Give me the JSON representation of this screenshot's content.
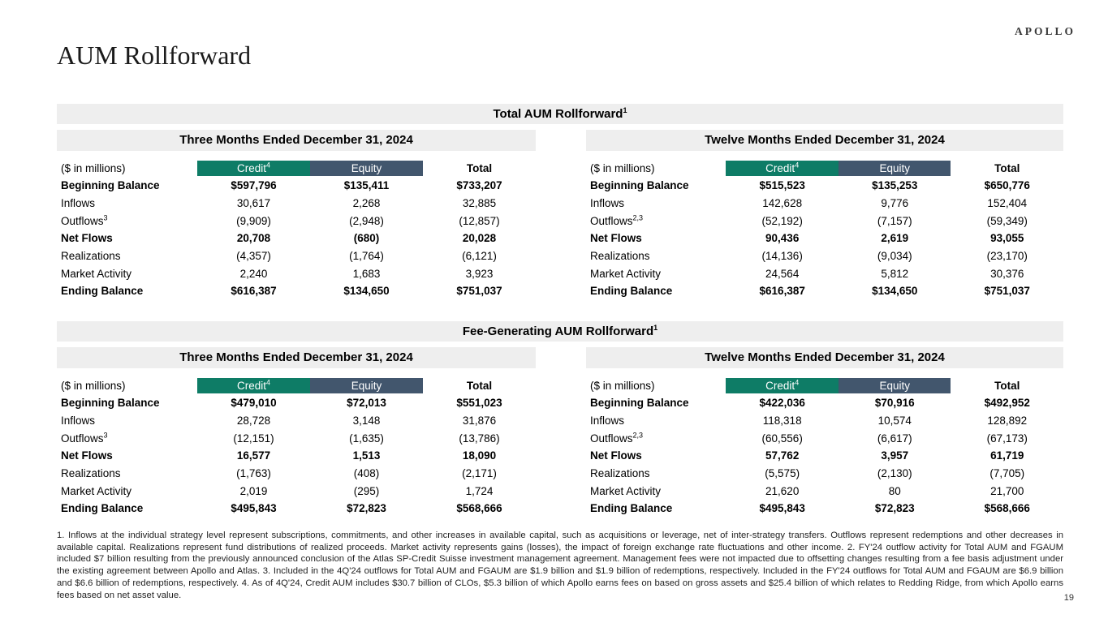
{
  "brand": {
    "logo": "APOLLO"
  },
  "page": {
    "title": "AUM Rollforward",
    "number": "19"
  },
  "colors": {
    "credit_header": "#0e7c66",
    "equity_header": "#42566d",
    "bar_bg": "#eeeeee"
  },
  "sections": [
    {
      "title": "Total AUM Rollforward",
      "title_sup": "1",
      "tables": [
        {
          "period": "Three Months Ended December 31, 2024",
          "unit_label": "($ in millions)",
          "columns": [
            {
              "label": "Credit",
              "sup": "4"
            },
            {
              "label": "Equity",
              "sup": ""
            },
            {
              "label": "Total",
              "sup": ""
            }
          ],
          "rows": [
            {
              "label": "Beginning Balance",
              "sup": "",
              "bold": true,
              "values": [
                "$597,796",
                "$135,411",
                "$733,207"
              ]
            },
            {
              "label": "Inflows",
              "sup": "",
              "bold": false,
              "values": [
                "30,617",
                "2,268",
                "32,885"
              ]
            },
            {
              "label": "Outflows",
              "sup": "3",
              "bold": false,
              "values": [
                "(9,909)",
                "(2,948)",
                "(12,857)"
              ]
            },
            {
              "label": "Net Flows",
              "sup": "",
              "bold": true,
              "values": [
                "20,708",
                "(680)",
                "20,028"
              ]
            },
            {
              "label": "Realizations",
              "sup": "",
              "bold": false,
              "values": [
                "(4,357)",
                "(1,764)",
                "(6,121)"
              ]
            },
            {
              "label": "Market Activity",
              "sup": "",
              "bold": false,
              "values": [
                "2,240",
                "1,683",
                "3,923"
              ]
            },
            {
              "label": "Ending Balance",
              "sup": "",
              "bold": true,
              "values": [
                "$616,387",
                "$134,650",
                "$751,037"
              ]
            }
          ]
        },
        {
          "period": "Twelve Months Ended December 31, 2024",
          "unit_label": "($ in millions)",
          "columns": [
            {
              "label": "Credit",
              "sup": "4"
            },
            {
              "label": "Equity",
              "sup": ""
            },
            {
              "label": "Total",
              "sup": ""
            }
          ],
          "rows": [
            {
              "label": "Beginning Balance",
              "sup": "",
              "bold": true,
              "values": [
                "$515,523",
                "$135,253",
                "$650,776"
              ]
            },
            {
              "label": "Inflows",
              "sup": "",
              "bold": false,
              "values": [
                "142,628",
                "9,776",
                "152,404"
              ]
            },
            {
              "label": "Outflows",
              "sup": "2,3",
              "bold": false,
              "values": [
                "(52,192)",
                "(7,157)",
                "(59,349)"
              ]
            },
            {
              "label": "Net Flows",
              "sup": "",
              "bold": true,
              "values": [
                "90,436",
                "2,619",
                "93,055"
              ]
            },
            {
              "label": "Realizations",
              "sup": "",
              "bold": false,
              "values": [
                "(14,136)",
                "(9,034)",
                "(23,170)"
              ]
            },
            {
              "label": "Market Activity",
              "sup": "",
              "bold": false,
              "values": [
                "24,564",
                "5,812",
                "30,376"
              ]
            },
            {
              "label": "Ending Balance",
              "sup": "",
              "bold": true,
              "values": [
                "$616,387",
                "$134,650",
                "$751,037"
              ]
            }
          ]
        }
      ]
    },
    {
      "title": "Fee-Generating AUM Rollforward",
      "title_sup": "1",
      "tables": [
        {
          "period": "Three Months Ended December 31, 2024",
          "unit_label": "($ in millions)",
          "columns": [
            {
              "label": "Credit",
              "sup": "4"
            },
            {
              "label": "Equity",
              "sup": ""
            },
            {
              "label": "Total",
              "sup": ""
            }
          ],
          "rows": [
            {
              "label": "Beginning Balance",
              "sup": "",
              "bold": true,
              "values": [
                "$479,010",
                "$72,013",
                "$551,023"
              ]
            },
            {
              "label": "Inflows",
              "sup": "",
              "bold": false,
              "values": [
                "28,728",
                "3,148",
                "31,876"
              ]
            },
            {
              "label": "Outflows",
              "sup": "3",
              "bold": false,
              "values": [
                "(12,151)",
                "(1,635)",
                "(13,786)"
              ]
            },
            {
              "label": "Net Flows",
              "sup": "",
              "bold": true,
              "values": [
                "16,577",
                "1,513",
                "18,090"
              ]
            },
            {
              "label": "Realizations",
              "sup": "",
              "bold": false,
              "values": [
                "(1,763)",
                "(408)",
                "(2,171)"
              ]
            },
            {
              "label": "Market Activity",
              "sup": "",
              "bold": false,
              "values": [
                "2,019",
                "(295)",
                "1,724"
              ]
            },
            {
              "label": "Ending Balance",
              "sup": "",
              "bold": true,
              "values": [
                "$495,843",
                "$72,823",
                "$568,666"
              ]
            }
          ]
        },
        {
          "period": "Twelve Months Ended December 31, 2024",
          "unit_label": "($ in millions)",
          "columns": [
            {
              "label": "Credit",
              "sup": "4"
            },
            {
              "label": "Equity",
              "sup": ""
            },
            {
              "label": "Total",
              "sup": ""
            }
          ],
          "rows": [
            {
              "label": "Beginning Balance",
              "sup": "",
              "bold": true,
              "values": [
                "$422,036",
                "$70,916",
                "$492,952"
              ]
            },
            {
              "label": "Inflows",
              "sup": "",
              "bold": false,
              "values": [
                "118,318",
                "10,574",
                "128,892"
              ]
            },
            {
              "label": "Outflows",
              "sup": "2,3",
              "bold": false,
              "values": [
                "(60,556)",
                "(6,617)",
                "(67,173)"
              ]
            },
            {
              "label": "Net Flows",
              "sup": "",
              "bold": true,
              "values": [
                "57,762",
                "3,957",
                "61,719"
              ]
            },
            {
              "label": "Realizations",
              "sup": "",
              "bold": false,
              "values": [
                "(5,575)",
                "(2,130)",
                "(7,705)"
              ]
            },
            {
              "label": "Market Activity",
              "sup": "",
              "bold": false,
              "values": [
                "21,620",
                "80",
                "21,700"
              ]
            },
            {
              "label": "Ending Balance",
              "sup": "",
              "bold": true,
              "values": [
                "$495,843",
                "$72,823",
                "$568,666"
              ]
            }
          ]
        }
      ]
    }
  ],
  "footnotes": {
    "text": "1. Inflows at the individual strategy level represent subscriptions, commitments, and other increases in available capital, such as acquisitions or leverage, net of inter-strategy transfers. Outflows represent redemptions and other decreases in available capital. Realizations represent fund distributions of realized proceeds. Market activity represents gains (losses), the impact of foreign exchange rate fluctuations and other income. 2. FY'24 outflow activity for Total AUM and FGAUM included $7 billion resulting from the previously announced conclusion of the Atlas SP-Credit Suisse investment management agreement. Management fees were not impacted due to offsetting changes resulting from a fee basis adjustment under the existing agreement between Apollo and Atlas. 3. Included in the 4Q'24 outflows for Total AUM and FGAUM are $1.9 billion and $1.9 billion of redemptions, respectively. Included in the FY'24 outflows for Total AUM and FGAUM are $6.9 billion and $6.6 billion of redemptions, respectively. 4. As of 4Q'24, Credit AUM includes $30.7 billion of CLOs, $5.3 billion of which Apollo earns fees on based on gross assets and $25.4 billion of which relates to Redding Ridge, from which Apollo earns fees based on net asset value."
  }
}
